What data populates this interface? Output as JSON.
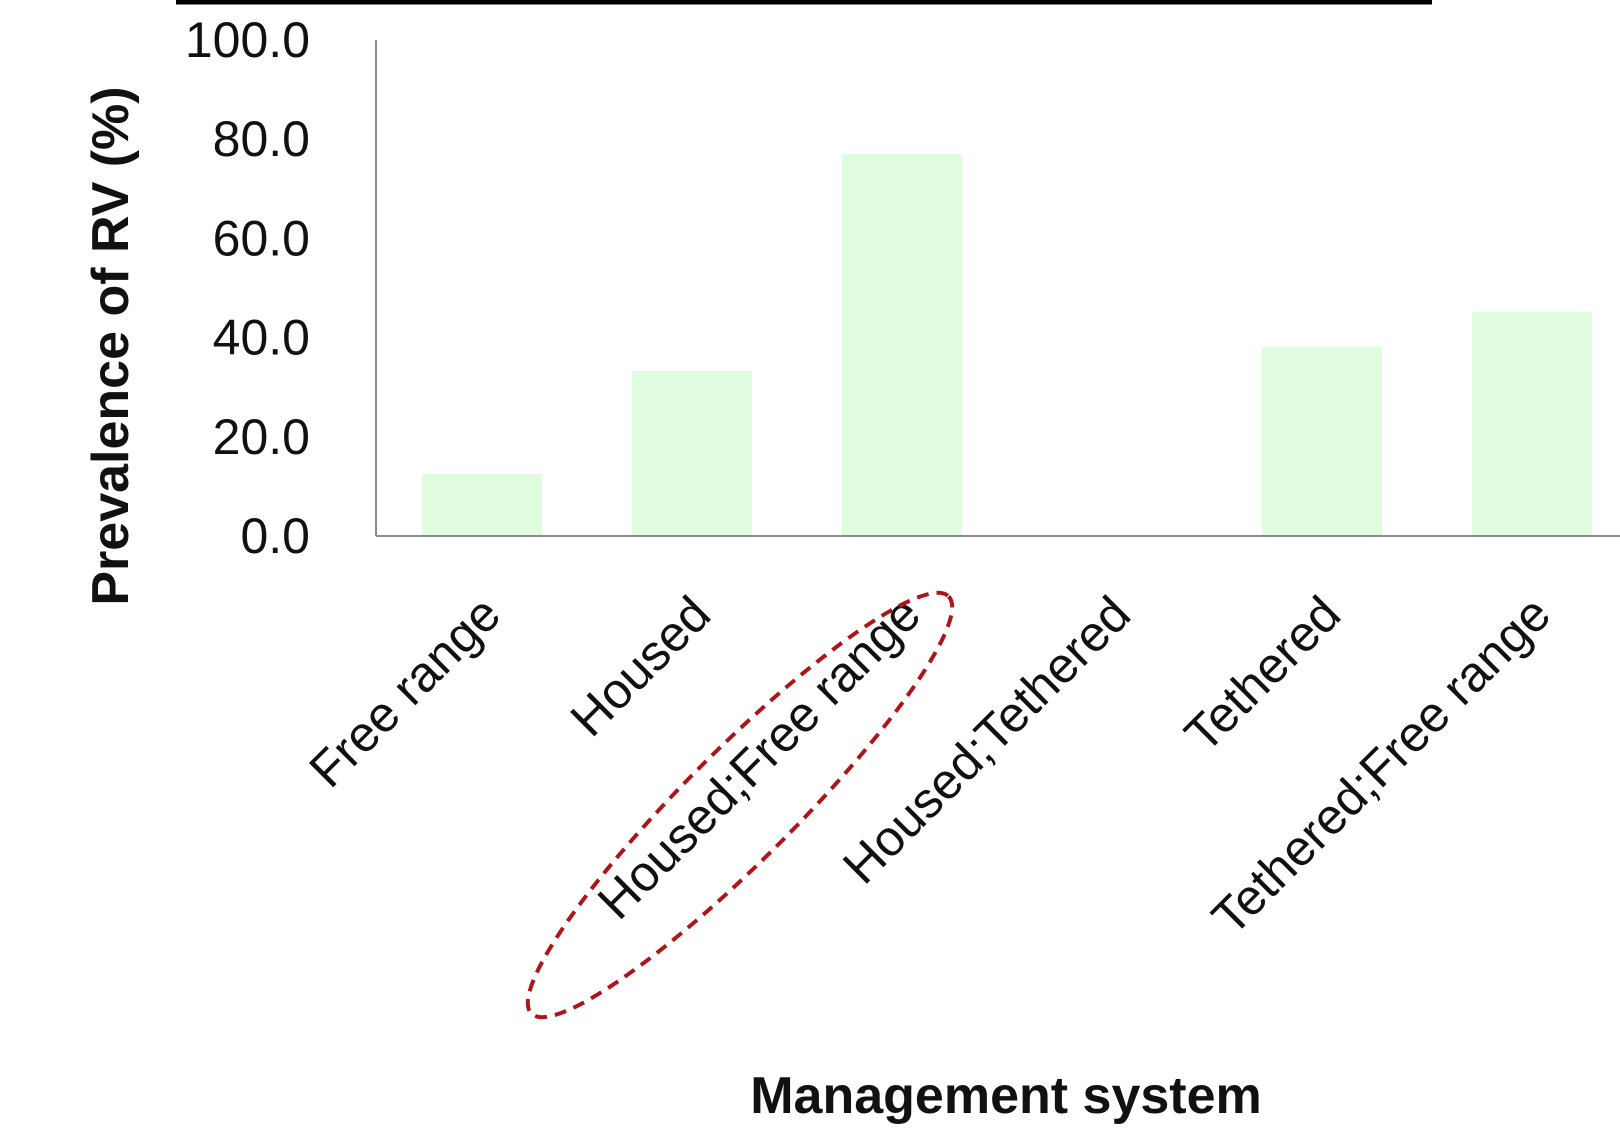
{
  "chart_data": {
    "type": "bar",
    "categories": [
      "Free range",
      "Housed",
      "Housed;Free range",
      "Housed;Tethered",
      "Tethered",
      "Tethered;Free range"
    ],
    "values": [
      12.5,
      33.3,
      77.0,
      0.0,
      38.2,
      45.2
    ],
    "xlabel": "Management system",
    "ylabel": "Prevalence of RV (%)",
    "ylim": [
      0,
      100
    ],
    "yticks": [
      "0.0",
      "20.0",
      "40.0",
      "60.0",
      "80.0",
      "100.0"
    ],
    "grid": false,
    "highlighted_category": "Housed;Free range",
    "colors": {
      "bar": "#dffcdf",
      "axis": "#8c8c8c",
      "highlight": "#b0141b",
      "text": "#111111"
    }
  }
}
